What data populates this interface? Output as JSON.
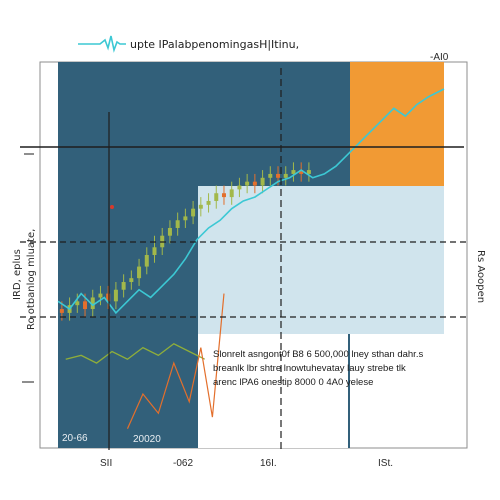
{
  "chart_data": {
    "type": "line",
    "title": "upte IPalabpenomingasH|Itinu,",
    "corner_label": "-AI0",
    "ylabel_lines": [
      "IRD, eplus",
      "Ro otbanlog mluate,"
    ],
    "right_label": "Rs Aoopen",
    "x_tick_labels": [
      "SII",
      "-062",
      "16I.",
      "ISt."
    ],
    "panel_labels": [
      "20-66",
      "20020"
    ],
    "annotation_lines": [
      "Slonrelt asngont0f B8 6 500,000 lney sthan dahr.s",
      "breanlk lbr shtre lnowtuhevatay lauy strebe tlk",
      "arenc lPA6 onestip 8000 0 4A0 yelese"
    ],
    "colors": {
      "panel_dark": "#32607a",
      "panel_light": "#d0e4ed",
      "highlight": "#f19a34",
      "line": "#3cc8d4",
      "candle_up": "#a2b84a",
      "candle_down": "#e36f2c",
      "volume": "#8fae3a",
      "crosshair": "#1e1e1e"
    },
    "line_series": {
      "x": [
        0,
        3,
        6,
        9,
        12,
        15,
        18,
        21,
        24,
        27,
        30,
        33,
        36,
        39,
        42,
        45,
        48,
        51,
        54,
        57,
        60,
        63,
        66,
        69,
        72,
        75,
        78,
        81,
        84,
        87,
        90,
        93,
        96,
        100
      ],
      "y": [
        38,
        36,
        40,
        37,
        39,
        35,
        38,
        41,
        39,
        42,
        45,
        49,
        54,
        57,
        59,
        62,
        64,
        65,
        67,
        69,
        70,
        72,
        70,
        71,
        73,
        76,
        79,
        82,
        85,
        88,
        86,
        89,
        91,
        93
      ]
    },
    "candles": {
      "x": [
        1,
        3,
        5,
        7,
        9,
        11,
        13,
        15,
        17,
        19,
        21,
        23,
        25,
        27,
        29,
        31,
        33,
        35,
        37,
        39,
        41,
        43,
        45,
        47,
        49,
        51,
        53,
        55,
        57,
        59,
        61,
        63,
        65
      ],
      "open": [
        36,
        35,
        37,
        38,
        36,
        39,
        40,
        38,
        41,
        43,
        44,
        47,
        50,
        52,
        55,
        57,
        59,
        60,
        62,
        63,
        64,
        66,
        65,
        67,
        68,
        69,
        68,
        70,
        71,
        70,
        71,
        72,
        71
      ],
      "close": [
        35,
        37,
        38,
        36,
        39,
        40,
        38,
        41,
        43,
        44,
        47,
        50,
        52,
        55,
        57,
        59,
        60,
        62,
        63,
        64,
        66,
        65,
        67,
        68,
        69,
        68,
        70,
        71,
        70,
        71,
        72,
        71,
        72
      ],
      "high": [
        38,
        39,
        40,
        40,
        41,
        42,
        42,
        43,
        45,
        46,
        49,
        52,
        55,
        57,
        59,
        61,
        62,
        64,
        65,
        66,
        68,
        68,
        69,
        70,
        71,
        71,
        72,
        73,
        73,
        73,
        74,
        74,
        74
      ],
      "low": [
        33,
        33,
        35,
        34,
        34,
        37,
        36,
        36,
        39,
        41,
        42,
        45,
        48,
        50,
        53,
        55,
        57,
        58,
        60,
        61,
        62,
        63,
        63,
        65,
        66,
        66,
        66,
        68,
        68,
        68,
        69,
        69,
        69
      ]
    },
    "volume_trace": [
      [
        2,
        23
      ],
      [
        6,
        24
      ],
      [
        10,
        22
      ],
      [
        14,
        25
      ],
      [
        18,
        23
      ],
      [
        22,
        26
      ],
      [
        26,
        24
      ],
      [
        30,
        27
      ],
      [
        34,
        25
      ],
      [
        38,
        23
      ]
    ],
    "orange_trace": [
      [
        18,
        5
      ],
      [
        22,
        14
      ],
      [
        26,
        9
      ],
      [
        30,
        22
      ],
      [
        34,
        12
      ],
      [
        37,
        26
      ],
      [
        40,
        8
      ],
      [
        43,
        40
      ]
    ],
    "ylim": [
      0,
      100
    ],
    "xlim": [
      0,
      100
    ]
  }
}
